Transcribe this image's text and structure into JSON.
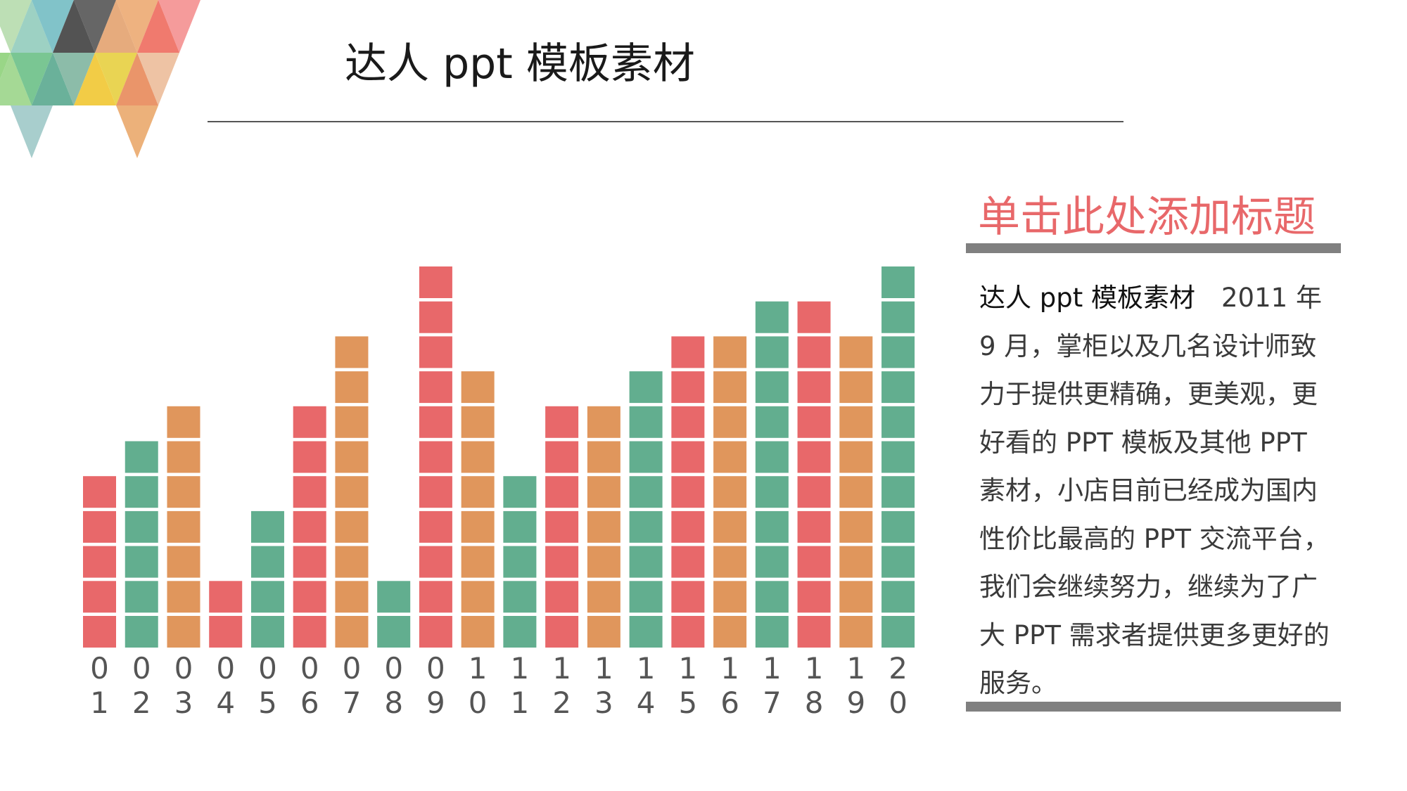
{
  "slide": {
    "title": "达人 ppt 模板素材"
  },
  "sidebar": {
    "heading": "单击此处添加标题",
    "lead": "达人 ppt 模板素材",
    "body": "2011 年 9 月，掌柜以及几名设计师致力于提供更精确，更美观，更好看的 PPT 模板及其他 PPT 素材，小店目前已经成为国内性价比最高的 PPT 交流平台，我们会继续努力，继续为了广大 PPT 需求者提供更多更好的服务。"
  },
  "colors": {
    "red": "#e8686a",
    "orange": "#e0965c",
    "green": "#62ae8f"
  },
  "chart_data": {
    "type": "bar",
    "categories": [
      "01",
      "02",
      "03",
      "04",
      "05",
      "06",
      "07",
      "08",
      "09",
      "10",
      "11",
      "12",
      "13",
      "14",
      "15",
      "16",
      "17",
      "18",
      "19",
      "20"
    ],
    "values": [
      5,
      6,
      7,
      2,
      4,
      7,
      9,
      2,
      11,
      8,
      5,
      7,
      7,
      8,
      9,
      9,
      10,
      10,
      9,
      11
    ],
    "bar_colors": [
      "red",
      "green",
      "orange",
      "red",
      "green",
      "red",
      "orange",
      "green",
      "red",
      "orange",
      "green",
      "red",
      "orange",
      "green",
      "red",
      "orange",
      "green",
      "red",
      "orange",
      "green"
    ],
    "ylim": [
      0,
      11
    ],
    "title": "",
    "xlabel": "",
    "ylabel": ""
  }
}
